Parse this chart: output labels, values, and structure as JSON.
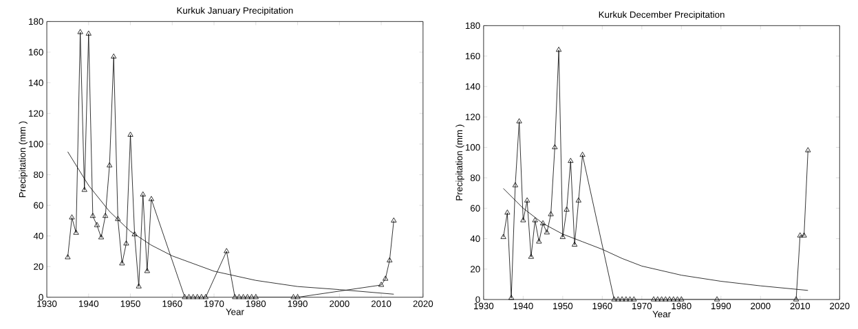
{
  "chart_data": [
    {
      "type": "line",
      "title": "Kurkuk January Precipitation",
      "xlabel": "Year",
      "ylabel": "Precipitation  (mm )",
      "x": [
        1935,
        1936,
        1937,
        1938,
        1939,
        1940,
        1941,
        1942,
        1943,
        1944,
        1945,
        1946,
        1947,
        1948,
        1949,
        1950,
        1951,
        1952,
        1953,
        1954,
        1955,
        1963,
        1964,
        1965,
        1966,
        1967,
        1968,
        1973,
        1975,
        1976,
        1977,
        1978,
        1979,
        1980,
        1989,
        1990,
        2010,
        2011,
        2012,
        2013
      ],
      "xlim": [
        1930,
        2020
      ],
      "ylim": [
        0,
        180
      ],
      "xticks": [
        1930,
        1940,
        1950,
        1960,
        1970,
        1980,
        1990,
        2000,
        2010,
        2020
      ],
      "yticks": [
        0,
        20,
        40,
        60,
        80,
        100,
        120,
        140,
        160,
        180
      ],
      "series": [
        {
          "color": "#000000",
          "marker": "triangle",
          "values": [
            26,
            52,
            42,
            173,
            70,
            172,
            53,
            47,
            39,
            53,
            86,
            157,
            51,
            22,
            35,
            106,
            41,
            7,
            67,
            17,
            64,
            0,
            0,
            0,
            0,
            0,
            0,
            30,
            0,
            0,
            0,
            0,
            0,
            0,
            0,
            0,
            8,
            12,
            24,
            50
          ]
        },
        {
          "color": "#000000",
          "marker": "none",
          "x": [
            1935,
            1940,
            1945,
            1950,
            1955,
            1960,
            1970,
            1980,
            1990,
            2000,
            2013
          ],
          "values": [
            95,
            73,
            56,
            43,
            34,
            27,
            17,
            11,
            7,
            5,
            2
          ]
        }
      ]
    },
    {
      "type": "line",
      "title": "Kurkuk December Precipitation",
      "xlabel": "Year",
      "ylabel": "Precipitation  (mm )",
      "x": [
        1935,
        1936,
        1937,
        1938,
        1939,
        1940,
        1941,
        1942,
        1943,
        1944,
        1945,
        1946,
        1947,
        1948,
        1949,
        1950,
        1951,
        1952,
        1953,
        1954,
        1955,
        1963,
        1964,
        1965,
        1966,
        1967,
        1968,
        1973,
        1974,
        1975,
        1976,
        1977,
        1978,
        1979,
        1980,
        1989,
        2009,
        2010,
        2011,
        2012
      ],
      "xlim": [
        1930,
        2020
      ],
      "ylim": [
        0,
        180
      ],
      "xticks": [
        1930,
        1940,
        1950,
        1960,
        1970,
        1980,
        1990,
        2000,
        2010,
        2020
      ],
      "yticks": [
        0,
        20,
        40,
        60,
        80,
        100,
        120,
        140,
        160,
        180
      ],
      "series": [
        {
          "color": "#000000",
          "marker": "triangle",
          "values": [
            41,
            57,
            1,
            75,
            117,
            52,
            65,
            28,
            52,
            38,
            50,
            44,
            56,
            100,
            164,
            41,
            59,
            91,
            36,
            65,
            95,
            0,
            0,
            0,
            0,
            0,
            0,
            0,
            0,
            0,
            0,
            0,
            0,
            0,
            0,
            0,
            0,
            42,
            42,
            98
          ]
        },
        {
          "color": "#000000",
          "marker": "none",
          "x": [
            1935,
            1940,
            1945,
            1950,
            1955,
            1960,
            1965,
            1970,
            1980,
            1990,
            2000,
            2012
          ],
          "values": [
            73,
            60,
            50,
            43,
            38,
            33,
            27,
            22,
            16,
            12,
            9,
            6
          ]
        }
      ]
    }
  ]
}
